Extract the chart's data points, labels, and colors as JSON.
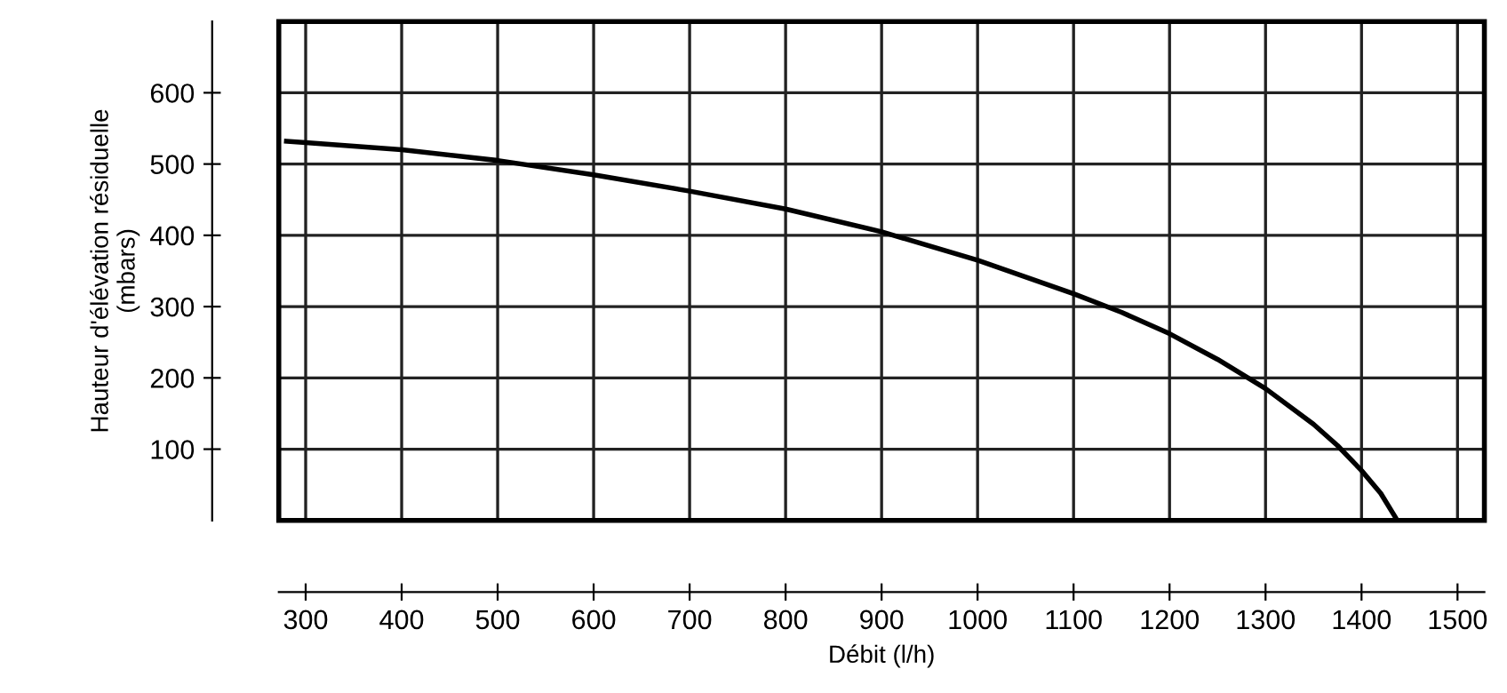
{
  "chart_data": {
    "type": "line",
    "xlabel": "Débit (l/h)",
    "ylabel": "Hauteur d'élévation résiduelle\n(mbars)",
    "x": [
      280,
      300,
      400,
      500,
      600,
      700,
      800,
      900,
      1000,
      1100,
      1150,
      1200,
      1250,
      1300,
      1350,
      1375,
      1400,
      1420,
      1435
    ],
    "series": [
      {
        "color": "#000000",
        "values": [
          532,
          530,
          520,
          505,
          485,
          462,
          437,
          405,
          365,
          318,
          292,
          262,
          226,
          185,
          135,
          105,
          70,
          38,
          5
        ]
      }
    ],
    "xlim": [
      272,
      1528
    ],
    "ylim": [
      0,
      700
    ],
    "xticks": [
      300,
      400,
      500,
      600,
      700,
      800,
      900,
      1000,
      1100,
      1200,
      1300,
      1400,
      1500
    ],
    "yticks": [
      100,
      200,
      300,
      400,
      500,
      600
    ],
    "grid": true,
    "marker": "none",
    "line_style": "solid"
  }
}
